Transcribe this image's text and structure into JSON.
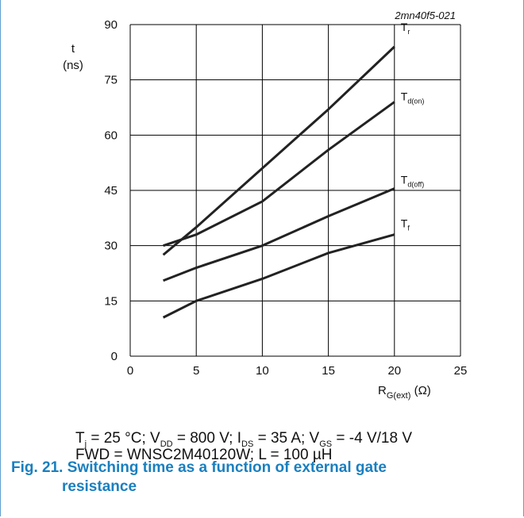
{
  "chart_data": {
    "type": "line",
    "watermark": "2mn40f5-021",
    "ylabel": "t",
    "ylabel_unit": "(ns)",
    "xlabel_main": "R",
    "xlabel_sub": "G(ext)",
    "xlabel_unit": "(Ω)",
    "xlim": [
      0,
      25
    ],
    "ylim": [
      0,
      90
    ],
    "x_ticks": [
      "0",
      "5",
      "10",
      "15",
      "20",
      "25"
    ],
    "y_ticks": [
      "0",
      "15",
      "30",
      "45",
      "60",
      "75",
      "90"
    ],
    "grid": true,
    "series": [
      {
        "label_main": "T",
        "label_sub": "r",
        "x": [
          2.5,
          5,
          10,
          15,
          20
        ],
        "y": [
          27.5,
          35,
          51,
          67,
          84
        ]
      },
      {
        "label_main": "T",
        "label_sub": "d(on)",
        "x": [
          2.5,
          5,
          10,
          15,
          20
        ],
        "y": [
          30,
          33,
          42,
          56,
          69
        ]
      },
      {
        "label_main": "T",
        "label_sub": "d(off)",
        "x": [
          2.5,
          5,
          10,
          15,
          20
        ],
        "y": [
          20.5,
          24,
          30,
          38,
          45.5
        ]
      },
      {
        "label_main": "T",
        "label_sub": "f",
        "x": [
          2.5,
          5,
          10,
          15,
          20
        ],
        "y": [
          10.5,
          15,
          21,
          28,
          33
        ]
      }
    ]
  },
  "conditions": {
    "line1": {
      "t": "T",
      "t_sub": "j",
      "t_val": " = 25 °C; V",
      "vdd_sub": "DD",
      "vdd_val": " = 800 V; I",
      "ids_sub": "DS",
      "ids_val": " = 35 A; V",
      "vgs_sub": "GS",
      "vgs_val": " = -4 V/18 V"
    },
    "line2": "FWD = WNSC2M40120W; L = 100 µH"
  },
  "caption": {
    "line1": "Fig. 21. Switching time as a function of external gate",
    "line2": "resistance"
  }
}
